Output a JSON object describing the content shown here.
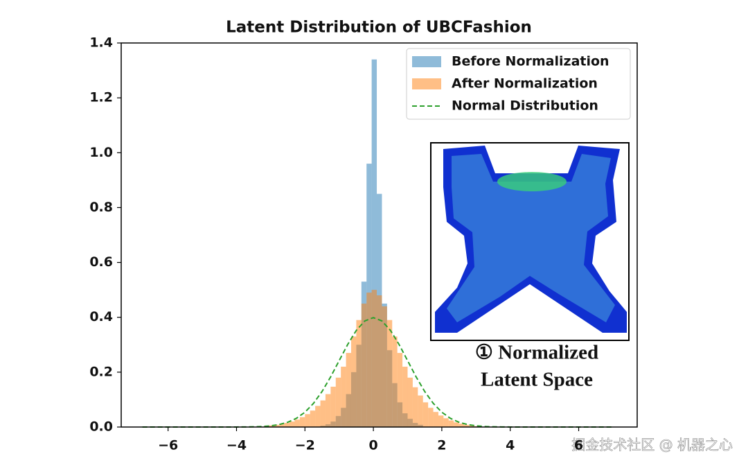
{
  "chart_data": {
    "type": "histogram",
    "title": "Latent Distribution of UBCFashion",
    "xlim": [
      -7.37,
      7.71
    ],
    "ylim": [
      0,
      1.4
    ],
    "xticks": [
      {
        "value": -6,
        "label": "−6"
      },
      {
        "value": -4,
        "label": "−4"
      },
      {
        "value": -2,
        "label": "−2"
      },
      0,
      2,
      4,
      6
    ],
    "yticks": [
      {
        "value": 0,
        "label": "0.0"
      },
      0.2,
      0.4,
      0.6,
      0.8,
      {
        "value": 1,
        "label": "1.0"
      },
      1.2,
      1.4
    ],
    "legend": "upper-right",
    "alpha": 0.5,
    "series": [
      {
        "name": "Before Normalization",
        "color": "#1f77b4",
        "type": "histogram",
        "bins": [
          -1.55,
          -1.4,
          -1.25,
          -1.1,
          -0.95,
          -0.8,
          -0.65,
          -0.5,
          -0.35,
          -0.2,
          -0.05,
          0.1,
          0.25,
          0.4,
          0.55,
          0.7,
          0.85,
          1.0,
          1.15,
          1.3,
          1.45
        ],
        "values": [
          0.005,
          0.01,
          0.02,
          0.04,
          0.07,
          0.12,
          0.2,
          0.3,
          0.53,
          0.96,
          1.34,
          0.85,
          0.45,
          0.28,
          0.16,
          0.09,
          0.05,
          0.03,
          0.015,
          0.008
        ]
      },
      {
        "name": "After Normalization",
        "color": "#ff7f0e",
        "type": "histogram",
        "bins": [
          -3.2,
          -3.05,
          -2.9,
          -2.75,
          -2.6,
          -2.45,
          -2.3,
          -2.15,
          -2.0,
          -1.85,
          -1.7,
          -1.55,
          -1.4,
          -1.25,
          -1.1,
          -0.95,
          -0.8,
          -0.65,
          -0.5,
          -0.35,
          -0.2,
          -0.05,
          0.1,
          0.25,
          0.4,
          0.55,
          0.7,
          0.85,
          1.0,
          1.15,
          1.3,
          1.45,
          1.6,
          1.75,
          1.9,
          2.05,
          2.2,
          2.35,
          2.5,
          2.65,
          2.8,
          2.95,
          3.1
        ],
        "values": [
          0.004,
          0.006,
          0.008,
          0.011,
          0.015,
          0.02,
          0.027,
          0.036,
          0.047,
          0.06,
          0.077,
          0.097,
          0.12,
          0.147,
          0.18,
          0.22,
          0.27,
          0.33,
          0.39,
          0.45,
          0.49,
          0.5,
          0.48,
          0.44,
          0.39,
          0.33,
          0.27,
          0.22,
          0.18,
          0.145,
          0.115,
          0.09,
          0.07,
          0.055,
          0.042,
          0.032,
          0.024,
          0.017,
          0.012,
          0.008,
          0.005,
          0.003
        ]
      },
      {
        "name": "Normal Distribution",
        "color": "#2ca02c",
        "type": "line",
        "style": "dashed",
        "x": [
          -6.75,
          -4,
          -3.75,
          -3.5,
          -3.25,
          -3,
          -2.75,
          -2.5,
          -2.25,
          -2,
          -1.75,
          -1.5,
          -1.25,
          -1,
          -0.75,
          -0.5,
          -0.25,
          0,
          0.25,
          0.5,
          0.75,
          1,
          1.25,
          1.5,
          1.75,
          2,
          2.25,
          2.5,
          2.75,
          3,
          3.25,
          3.5,
          3.75,
          4,
          7
        ],
        "values": [
          0,
          0.0001,
          0.0004,
          0.0009,
          0.002,
          0.0044,
          0.0091,
          0.0175,
          0.0317,
          0.054,
          0.0863,
          0.1295,
          0.1826,
          0.242,
          0.3011,
          0.3521,
          0.3867,
          0.3989,
          0.3867,
          0.3521,
          0.3011,
          0.242,
          0.1826,
          0.1295,
          0.0863,
          0.054,
          0.0317,
          0.0175,
          0.0091,
          0.0044,
          0.002,
          0.0009,
          0.0004,
          0.0001,
          0
        ]
      }
    ],
    "inset_caption": [
      "① Normalized",
      "Latent Space"
    ],
    "watermark": "掘金技术社区 @ 机器之心"
  }
}
